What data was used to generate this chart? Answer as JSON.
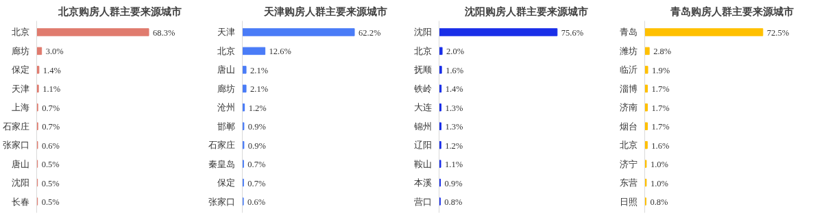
{
  "chart_data": [
    {
      "type": "bar",
      "orientation": "horizontal",
      "title": "北京购房人群主要来源城市",
      "categories": [
        "北京",
        "廊坊",
        "保定",
        "天津",
        "上海",
        "石家庄",
        "张家口",
        "唐山",
        "沈阳",
        "长春"
      ],
      "values": [
        68.3,
        3.0,
        1.4,
        1.1,
        0.7,
        0.7,
        0.6,
        0.5,
        0.5,
        0.5
      ],
      "value_labels": [
        "68.3%",
        "3.0%",
        "1.4%",
        "1.1%",
        "0.7%",
        "0.7%",
        "0.6%",
        "0.5%",
        "0.5%",
        "0.5%"
      ],
      "color": "#e07b6e",
      "tick_labels": "y"
    },
    {
      "type": "bar",
      "orientation": "horizontal",
      "title": "天津购房人群主要来源城市",
      "categories": [
        "天津",
        "北京",
        "唐山",
        "廊坊",
        "沧州",
        "邯郸",
        "石家庄",
        "秦皇岛",
        "保定",
        "张家口"
      ],
      "values": [
        62.2,
        12.6,
        2.1,
        2.1,
        1.2,
        0.9,
        0.9,
        0.7,
        0.7,
        0.6
      ],
      "value_labels": [
        "62.2%",
        "12.6%",
        "2.1%",
        "2.1%",
        "1.2%",
        "0.9%",
        "0.9%",
        "0.7%",
        "0.7%",
        "0.6%"
      ],
      "color": "#4a7cf7",
      "tick_labels": "y"
    },
    {
      "type": "bar",
      "orientation": "horizontal",
      "title": "沈阳购房人群主要来源城市",
      "categories": [
        "沈阳",
        "北京",
        "抚顺",
        "铁岭",
        "大连",
        "锦州",
        "辽阳",
        "鞍山",
        "本溪",
        "营口"
      ],
      "values": [
        75.6,
        2.0,
        1.6,
        1.4,
        1.3,
        1.3,
        1.2,
        1.1,
        0.9,
        0.8
      ],
      "value_labels": [
        "75.6%",
        "2.0%",
        "1.6%",
        "1.4%",
        "1.3%",
        "1.3%",
        "1.2%",
        "1.1%",
        "0.9%",
        "0.8%"
      ],
      "color": "#1a2fe8",
      "tick_labels": "y"
    },
    {
      "type": "bar",
      "orientation": "horizontal",
      "title": "青岛购房人群主要来源城市",
      "categories": [
        "青岛",
        "潍坊",
        "临沂",
        "淄博",
        "济南",
        "烟台",
        "北京",
        "济宁",
        "东营",
        "日照"
      ],
      "values": [
        72.5,
        2.8,
        1.9,
        1.7,
        1.7,
        1.7,
        1.6,
        1.0,
        1.0,
        0.8
      ],
      "value_labels": [
        "72.5%",
        "2.8%",
        "1.9%",
        "1.7%",
        "1.7%",
        "1.7%",
        "1.6%",
        "1.0%",
        "1.0%",
        "0.8%"
      ],
      "color": "#ffc000",
      "tick_labels": "y"
    }
  ]
}
